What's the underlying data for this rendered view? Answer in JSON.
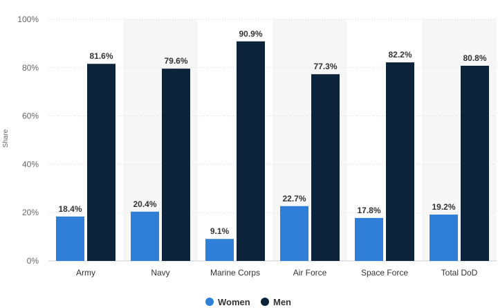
{
  "chart_data": {
    "type": "bar",
    "categories": [
      "Army",
      "Navy",
      "Marine Corps",
      "Air Force",
      "Space Force",
      "Total DoD"
    ],
    "series": [
      {
        "name": "Women",
        "values": [
          18.4,
          20.4,
          9.1,
          22.7,
          17.8,
          19.2
        ],
        "labels": [
          "18.4%",
          "20.4%",
          "9.1%",
          "22.7%",
          "17.8%",
          "19.2%"
        ],
        "color": "#2f7ed8"
      },
      {
        "name": "Men",
        "values": [
          81.6,
          79.6,
          90.9,
          77.3,
          82.2,
          80.8
        ],
        "labels": [
          "81.6%",
          "79.6%",
          "90.9%",
          "77.3%",
          "82.2%",
          "80.8%"
        ],
        "color": "#0d233a"
      }
    ],
    "title": "",
    "xlabel": "",
    "ylabel": "Share",
    "ylim": [
      0,
      100
    ],
    "yticks": [
      0,
      20,
      40,
      60,
      80,
      100
    ],
    "ytick_labels": [
      "0%",
      "20%",
      "40%",
      "60%",
      "80%",
      "100%"
    ],
    "grid": true,
    "alternating_band_color": "#f7f7f7",
    "legend_position": "bottom-center"
  }
}
